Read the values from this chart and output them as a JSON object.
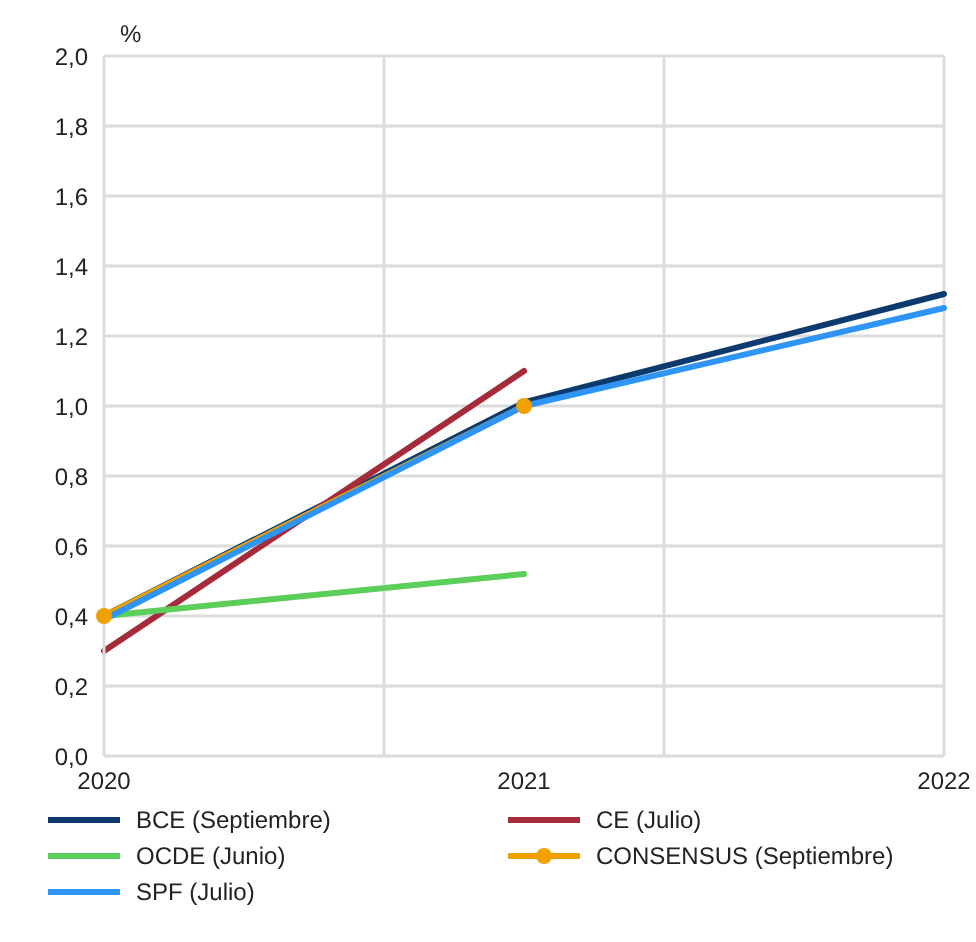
{
  "chart_data": {
    "type": "line",
    "ylabel": "%",
    "categories": [
      "2020",
      "2021",
      "2022"
    ],
    "series": [
      {
        "name": "BCE (Septiembre)",
        "color": "#0d3a6e",
        "values": [
          0.4,
          1.01,
          1.32
        ]
      },
      {
        "name": "CE (Julio)",
        "color": "#a52a3a",
        "values": [
          0.3,
          1.1,
          null
        ]
      },
      {
        "name": "OCDE (Junio)",
        "color": "#5ccf5a",
        "values": [
          0.4,
          0.52,
          null
        ]
      },
      {
        "name": "CONSENSUS (Septiembre)",
        "color": "#f0a000",
        "values": [
          0.4,
          1.0,
          null
        ],
        "marker": "circle"
      },
      {
        "name": "SPF (Julio)",
        "color": "#2f95f5",
        "values": [
          0.39,
          1.0,
          1.28
        ]
      }
    ],
    "ylim": [
      0,
      2
    ],
    "yticks": [
      {
        "value": 0,
        "label": "0,0"
      },
      {
        "value": 0.2,
        "label": "0,2"
      },
      {
        "value": 0.4,
        "label": "0,4"
      },
      {
        "value": 0.6,
        "label": "0,6"
      },
      {
        "value": 0.8,
        "label": "0,8"
      },
      {
        "value": 1,
        "label": "1,0"
      },
      {
        "value": 1.2,
        "label": "1,2"
      },
      {
        "value": 1.4,
        "label": "1,4"
      },
      {
        "value": 1.6,
        "label": "1,6"
      },
      {
        "value": 1.8,
        "label": "1,8"
      },
      {
        "value": 2,
        "label": "2,0"
      }
    ],
    "grid": true,
    "legend": "bottom"
  }
}
